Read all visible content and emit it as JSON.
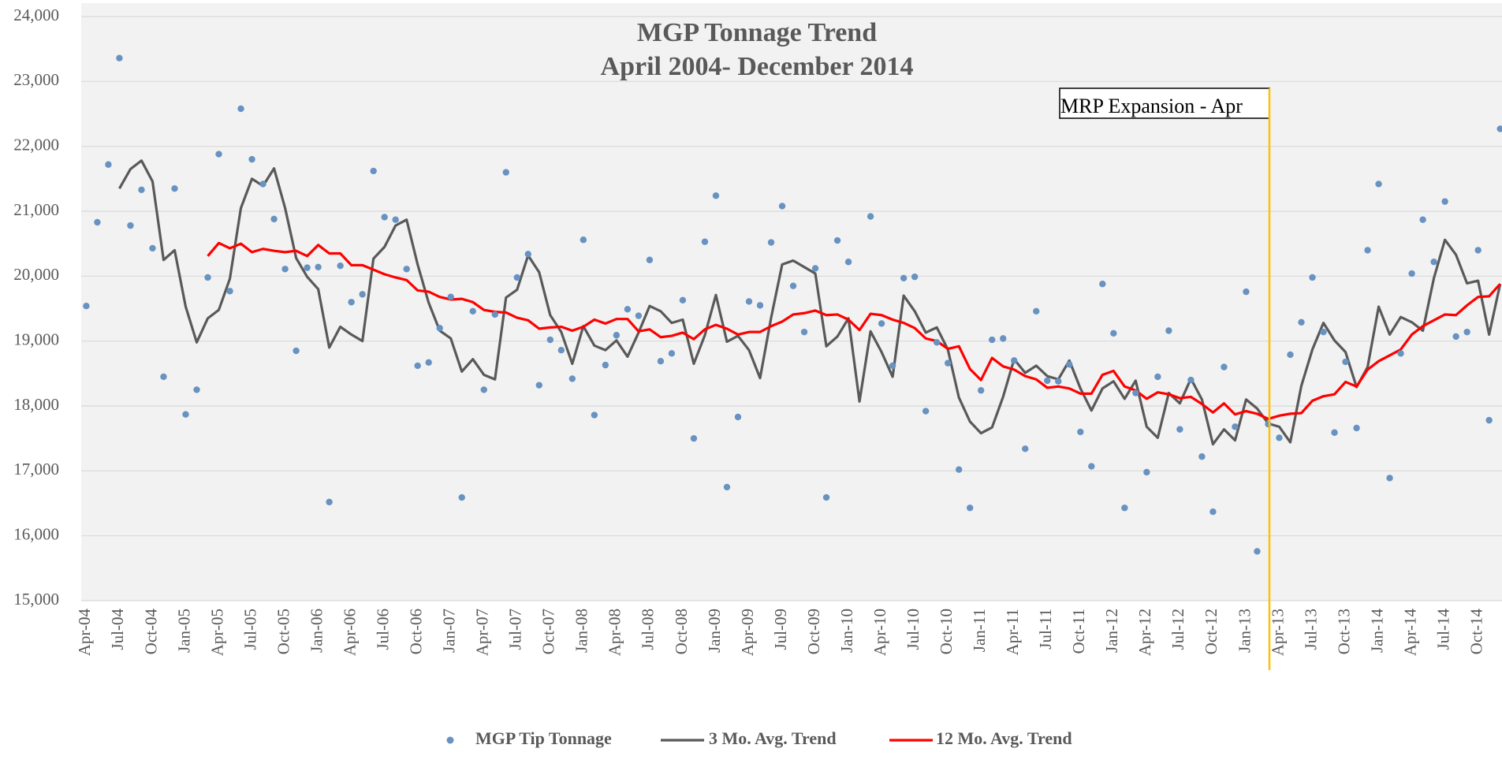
{
  "chart_data": {
    "type": "line",
    "title": "MGP Tonnage Trend",
    "subtitle": "April 2004- December 2014",
    "annotation": "MRP Expansion - Apr",
    "categories": [
      "Apr-04",
      null,
      null,
      "Jul-04",
      null,
      null,
      "Oct-04",
      null,
      null,
      "Jan-05",
      null,
      null,
      "Apr-05",
      null,
      null,
      "Jul-05",
      null,
      null,
      "Oct-05",
      null,
      null,
      "Jan-06",
      null,
      null,
      "Apr-06",
      null,
      null,
      "Jul-06",
      null,
      null,
      "Oct-06",
      null,
      null,
      "Jan-07",
      null,
      null,
      "Apr-07",
      null,
      null,
      "Jul-07",
      null,
      null,
      "Oct-07",
      null,
      null,
      "Jan-08",
      null,
      null,
      "Apr-08",
      null,
      null,
      "Jul-08",
      null,
      null,
      "Oct-08",
      null,
      null,
      "Jan-09",
      null,
      null,
      "Apr-09",
      null,
      null,
      "Jul-09",
      null,
      null,
      "Oct-09",
      null,
      null,
      "Jan-10",
      null,
      null,
      "Apr-10",
      null,
      null,
      "Jul-10",
      null,
      null,
      "Oct-10",
      null,
      null,
      "Jan-11",
      null,
      null,
      "Apr-11",
      null,
      null,
      "Jul-11",
      null,
      null,
      "Oct-11",
      null,
      null,
      "Jan-12",
      null,
      null,
      "Apr-12",
      null,
      null,
      "Jul-12",
      null,
      null,
      "Oct-12",
      null,
      null,
      "Jan-13",
      null,
      null,
      "Apr-13",
      null,
      null,
      "Jul-13",
      null,
      null,
      "Oct-13",
      null,
      null,
      "Jan-14",
      null,
      null,
      "Apr-14",
      null,
      null,
      "Jul-14",
      null,
      null,
      "Oct-14",
      null,
      null
    ],
    "series": [
      {
        "name": "MGP Tip Tonnage",
        "type": "scatter",
        "color": "#6792c1",
        "values": [
          19540,
          20830,
          21720,
          23360,
          20780,
          21330,
          20430,
          18450,
          21350,
          17870,
          18250,
          19980,
          21880,
          19770,
          22580,
          21800,
          21420,
          20880,
          20110,
          18850,
          20130,
          20140,
          16520,
          20160,
          19600,
          19720,
          21620,
          20910,
          20870,
          20110,
          18620,
          18670,
          19200,
          19680,
          16590,
          19460,
          18250,
          19410,
          21600,
          19980,
          20340,
          18320,
          19020,
          18860,
          18420,
          20560,
          17860,
          18630,
          19090,
          19490,
          19390,
          20250,
          18690,
          18810,
          19630,
          17500,
          20530,
          21240,
          16750,
          17830,
          19610,
          19550,
          20520,
          21080,
          19850,
          19140,
          20120,
          16590,
          20550,
          20220,
          null,
          20920,
          19270,
          18620,
          19970,
          19990,
          17920,
          18980,
          18660,
          17020,
          16430,
          18240,
          19020,
          19040,
          18700,
          17340,
          19460,
          18390,
          18380,
          18640,
          17600,
          17070,
          19880,
          19120,
          16430,
          18200,
          16980,
          18450,
          19160,
          17640,
          18400,
          17220,
          16370,
          18600,
          17680,
          19760,
          15760,
          17720,
          17510,
          18790,
          19290,
          19980,
          19140,
          17590,
          18680,
          17660,
          20400,
          21420,
          16890,
          18810,
          20040,
          20870,
          20220,
          21150,
          19070,
          19140,
          20400,
          17780,
          22270
        ]
      },
      {
        "name": "3 Mo. Avg. Trend",
        "type": "line",
        "color": "#595959",
        "values": [
          null,
          null,
          null,
          21350,
          21650,
          21780,
          21460,
          20250,
          20400,
          19530,
          18980,
          19350,
          19480,
          19960,
          21050,
          21500,
          21390,
          21660,
          21050,
          20280,
          19990,
          19800,
          18900,
          19220,
          19100,
          19000,
          20270,
          20450,
          20780,
          20870,
          20180,
          19590,
          19160,
          19040,
          18530,
          18720,
          18480,
          18410,
          19670,
          19790,
          20320,
          20060,
          19400,
          19140,
          18650,
          19230,
          18930,
          18860,
          19010,
          18760,
          19130,
          19540,
          19460,
          19280,
          19330,
          18650,
          19090,
          19710,
          18990,
          19080,
          18860,
          18430,
          19360,
          20180,
          20240,
          20140,
          20040,
          18920,
          19070,
          19350,
          18070,
          19150,
          18830,
          18450,
          19700,
          19460,
          19130,
          19210,
          18870,
          18130,
          17760,
          17580,
          17670,
          18140,
          18720,
          18510,
          18620,
          18460,
          18410,
          18700,
          18270,
          17930,
          18270,
          18380,
          18110,
          18390,
          17680,
          17510,
          18200,
          18040,
          18420,
          18100,
          17410,
          17640,
          17470,
          18100,
          17960,
          17730,
          17680,
          17440,
          18310,
          18870,
          19280,
          19010,
          18830,
          18290,
          18600,
          19530,
          19100,
          19370,
          19290,
          19160,
          19970,
          20560,
          20330,
          19890,
          19930,
          19100,
          19880
        ]
      },
      {
        "name": "12 Mo. Avg. Trend",
        "type": "line",
        "color": "#ff0000",
        "values": [
          null,
          null,
          null,
          null,
          null,
          null,
          null,
          null,
          null,
          null,
          null,
          20310,
          20510,
          20430,
          20500,
          20370,
          20420,
          20390,
          20370,
          20390,
          20310,
          20480,
          20350,
          20350,
          20170,
          20170,
          20100,
          20030,
          19980,
          19940,
          19780,
          19760,
          19680,
          19640,
          19650,
          19600,
          19480,
          19450,
          19440,
          19360,
          19320,
          19190,
          19210,
          19220,
          19160,
          19220,
          19330,
          19270,
          19340,
          19340,
          19150,
          19180,
          19060,
          19080,
          19130,
          19030,
          19180,
          19250,
          19190,
          19100,
          19140,
          19140,
          19230,
          19300,
          19410,
          19430,
          19470,
          19400,
          19410,
          19330,
          19170,
          19420,
          19400,
          19330,
          19280,
          19200,
          19040,
          19000,
          18880,
          18920,
          18570,
          18400,
          18740,
          18610,
          18560,
          18460,
          18410,
          18280,
          18300,
          18270,
          18190,
          18190,
          18480,
          18540,
          18300,
          18240,
          18110,
          18210,
          18180,
          18120,
          18140,
          18030,
          17900,
          18040,
          17870,
          17920,
          17880,
          17800,
          17850,
          17880,
          17890,
          18080,
          18150,
          18180,
          18370,
          18300,
          18560,
          18690,
          18780,
          18870,
          19100,
          19230,
          19320,
          19410,
          19400,
          19550,
          19680,
          19690,
          19880
        ]
      }
    ],
    "ylim": [
      15000,
      24000
    ],
    "yticks": [
      {
        "value": 15000,
        "label": "15,000"
      },
      {
        "value": 16000,
        "label": "16,000"
      },
      {
        "value": 17000,
        "label": "17,000"
      },
      {
        "value": 18000,
        "label": "18,000"
      },
      {
        "value": 19000,
        "label": "19,000"
      },
      {
        "value": 20000,
        "label": "20,000"
      },
      {
        "value": 21000,
        "label": "21,000"
      },
      {
        "value": 22000,
        "label": "22,000"
      },
      {
        "value": 23000,
        "label": "23,000"
      },
      {
        "value": 24000,
        "label": "24,000"
      }
    ],
    "grid": true,
    "legend": "bottom"
  }
}
